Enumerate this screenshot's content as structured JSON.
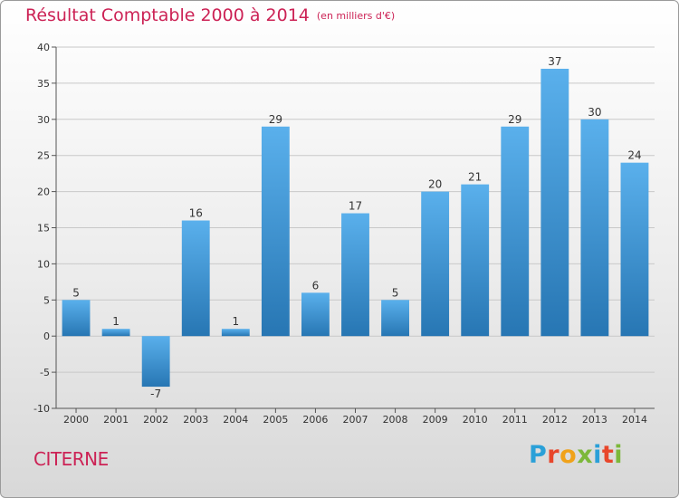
{
  "header": {
    "title": "Résultat Comptable 2000 à 2014",
    "subtitle": "(en milliers d'€)"
  },
  "footer": {
    "town": "CITERNE",
    "logo_letters": [
      "P",
      "r",
      "o",
      "x",
      "i",
      "t",
      "i"
    ],
    "logo_colors": [
      "#2aa0d8",
      "#e8462b",
      "#f0a21a",
      "#7cb83a",
      "#2aa0d8",
      "#e8462b",
      "#7cb83a"
    ]
  },
  "colors": {
    "title": "#cc2255",
    "bar_top": "#5ab0ec",
    "bar_bottom": "#2776b3",
    "grid": "#c8c8c8",
    "axis": "#555555"
  },
  "chart_data": {
    "type": "bar",
    "title": "Résultat Comptable 2000 à 2014",
    "subtitle": "(en milliers d'€)",
    "xlabel": "",
    "ylabel": "",
    "categories": [
      "2000",
      "2001",
      "2002",
      "2003",
      "2004",
      "2005",
      "2006",
      "2007",
      "2008",
      "2009",
      "2010",
      "2011",
      "2012",
      "2013",
      "2014"
    ],
    "values": [
      5,
      1,
      -7,
      16,
      1,
      29,
      6,
      17,
      5,
      20,
      21,
      29,
      37,
      30,
      24
    ],
    "ylim": [
      -10,
      40
    ],
    "yticks": [
      -10,
      -5,
      0,
      5,
      10,
      15,
      20,
      25,
      30,
      35,
      40
    ],
    "grid": true
  }
}
